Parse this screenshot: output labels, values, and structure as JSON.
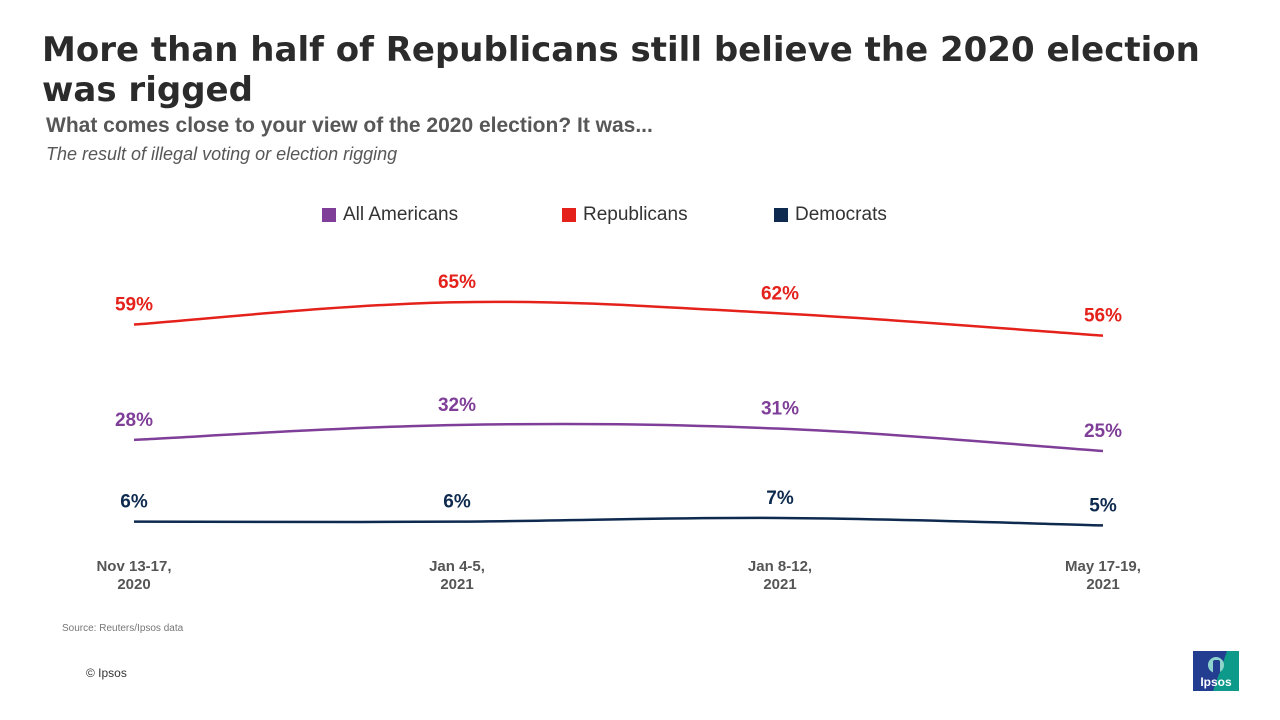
{
  "title": "More than half of Republicans still believe the 2020 election was rigged",
  "subtitle": "What comes close to your view of the 2020 election? It was...",
  "subsubtitle": "The result of illegal voting or election rigging",
  "source": "Source: Reuters/Ipsos data",
  "copyright": "© Ipsos",
  "logo_text": "Ipsos",
  "chart_data": {
    "type": "line",
    "title": "More than half of Republicans still believe the 2020 election was rigged",
    "categories": [
      [
        "Nov 13-17,",
        "2020"
      ],
      [
        "Jan 4-5,",
        "2021"
      ],
      [
        "Jan 8-12,",
        "2021"
      ],
      [
        "May 17-19,",
        "2021"
      ]
    ],
    "ylim": [
      0,
      100
    ],
    "grid": false,
    "legend_position": "top",
    "series": [
      {
        "name": "All Americans",
        "color": "#7f3e98",
        "values": [
          28,
          32,
          31,
          25
        ],
        "labels": [
          "28%",
          "32%",
          "31%",
          "25%"
        ]
      },
      {
        "name": "Republicans",
        "color": "#e4211b",
        "values": [
          59,
          65,
          62,
          56
        ],
        "labels": [
          "59%",
          "65%",
          "62%",
          "56%"
        ]
      },
      {
        "name": "Democrats",
        "color": "#0e2a4f",
        "values": [
          6,
          6,
          7,
          5
        ],
        "labels": [
          "6%",
          "6%",
          "7%",
          "5%"
        ]
      }
    ]
  }
}
